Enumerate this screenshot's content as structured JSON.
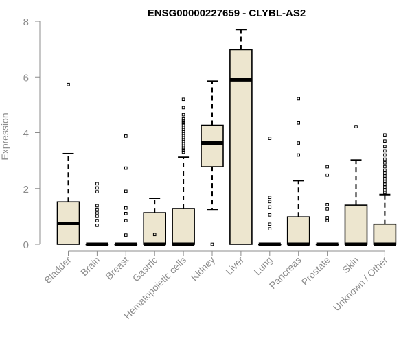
{
  "chart_data": {
    "type": "boxplot",
    "title": "ENSG00000227659 - CLYBL-AS2",
    "xlabel": "",
    "ylabel": "Expression",
    "ylim": [
      0,
      8
    ],
    "yticks": [
      0,
      2,
      4,
      6,
      8
    ],
    "grid": false,
    "box_fill": "#ede6cf",
    "outline_color": "#000000",
    "axis_color": "#8c8c8c",
    "categories": [
      "Bladder",
      "Brain",
      "Breast",
      "Gastric",
      "Hematopoietic cells",
      "Kidney",
      "Liver",
      "Lung",
      "Pancreas",
      "Prostate",
      "Skin",
      "Unknown / Other"
    ],
    "boxes": [
      {
        "label": "Bladder",
        "whisker_low": 0,
        "q1": 0,
        "median": 0.75,
        "q3": 1.52,
        "whisker_high": 3.25,
        "outliers": [
          5.73
        ]
      },
      {
        "label": "Brain",
        "whisker_low": 0,
        "q1": 0,
        "median": 0,
        "q3": 0,
        "whisker_high": 0,
        "outliers": [
          0.68,
          0.85,
          1.0,
          1.12,
          1.25,
          1.38,
          1.88,
          2.02,
          2.17
        ]
      },
      {
        "label": "Breast",
        "whisker_low": 0,
        "q1": 0,
        "median": 0,
        "q3": 0,
        "whisker_high": 0,
        "outliers": [
          0.33,
          0.85,
          1.1,
          1.3,
          1.9,
          2.73,
          3.88
        ]
      },
      {
        "label": "Gastric",
        "whisker_low": 0,
        "q1": 0,
        "median": 0,
        "q3": 1.13,
        "whisker_high": 1.65,
        "outliers": [
          0.35
        ]
      },
      {
        "label": "Hematopoietic cells",
        "whisker_low": 0,
        "q1": 0,
        "median": 0,
        "q3": 1.28,
        "whisker_high": 3.12,
        "outliers": [
          3.3,
          3.38,
          3.45,
          3.52,
          3.6,
          3.68,
          3.75,
          3.82,
          3.9,
          3.98,
          4.05,
          4.12,
          4.2,
          4.28,
          4.35,
          4.42,
          4.5,
          4.65,
          4.9,
          5.2
        ]
      },
      {
        "label": "Kidney",
        "whisker_low": 1.25,
        "q1": 2.78,
        "median": 3.63,
        "q3": 4.27,
        "whisker_high": 5.85,
        "outliers": [
          0
        ]
      },
      {
        "label": "Liver",
        "whisker_low": 0,
        "q1": 0,
        "median": 5.9,
        "q3": 6.98,
        "whisker_high": 7.7,
        "outliers": []
      },
      {
        "label": "Lung",
        "whisker_low": 0,
        "q1": 0,
        "median": 0,
        "q3": 0,
        "whisker_high": 0,
        "outliers": [
          0.55,
          0.72,
          1.05,
          1.33,
          1.53,
          1.68,
          3.8
        ]
      },
      {
        "label": "Pancreas",
        "whisker_low": 0,
        "q1": 0,
        "median": 0,
        "q3": 0.98,
        "whisker_high": 2.28,
        "outliers": [
          3.2,
          3.63,
          4.35,
          5.22
        ]
      },
      {
        "label": "Prostate",
        "whisker_low": 0,
        "q1": 0,
        "median": 0,
        "q3": 0,
        "whisker_high": 0,
        "outliers": [
          0.85,
          0.95,
          1.27,
          1.42,
          2.48,
          2.78
        ]
      },
      {
        "label": "Skin",
        "whisker_low": 0,
        "q1": 0,
        "median": 0,
        "q3": 1.4,
        "whisker_high": 3.02,
        "outliers": [
          4.22
        ]
      },
      {
        "label": "Unknown / Other",
        "whisker_low": 0,
        "q1": 0,
        "median": 0,
        "q3": 0.72,
        "whisker_high": 1.78,
        "outliers": [
          1.85,
          1.95,
          2.05,
          2.15,
          2.25,
          2.35,
          2.45,
          2.55,
          2.65,
          2.78,
          2.92,
          3.05,
          3.2,
          3.35,
          3.5,
          3.7,
          3.92
        ]
      }
    ]
  }
}
